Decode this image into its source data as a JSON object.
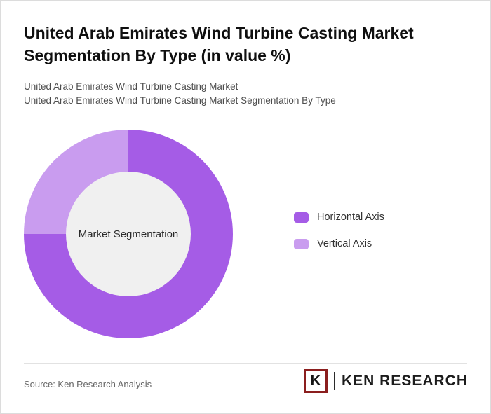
{
  "chart_data": {
    "type": "pie",
    "donut": true,
    "title": "United Arab Emirates Wind Turbine Casting Market Segmentation By Type (in value %)",
    "subtitles": [
      "United Arab Emirates Wind Turbine Casting Market",
      "United Arab Emirates Wind Turbine Casting Market Segmentation By Type"
    ],
    "center_label": "Market Segmentation",
    "categories": [
      "Horizontal Axis",
      "Vertical Axis"
    ],
    "values": [
      75,
      25
    ],
    "colors": [
      "#a55ce6",
      "#c99cef"
    ],
    "legend_position": "right",
    "hole_color": "#f0f0f0"
  },
  "footer": {
    "source": "Source: Ken Research Analysis",
    "logo": {
      "letter": "K",
      "text": "KEN RESEARCH",
      "color": "#8b1e1e"
    }
  }
}
